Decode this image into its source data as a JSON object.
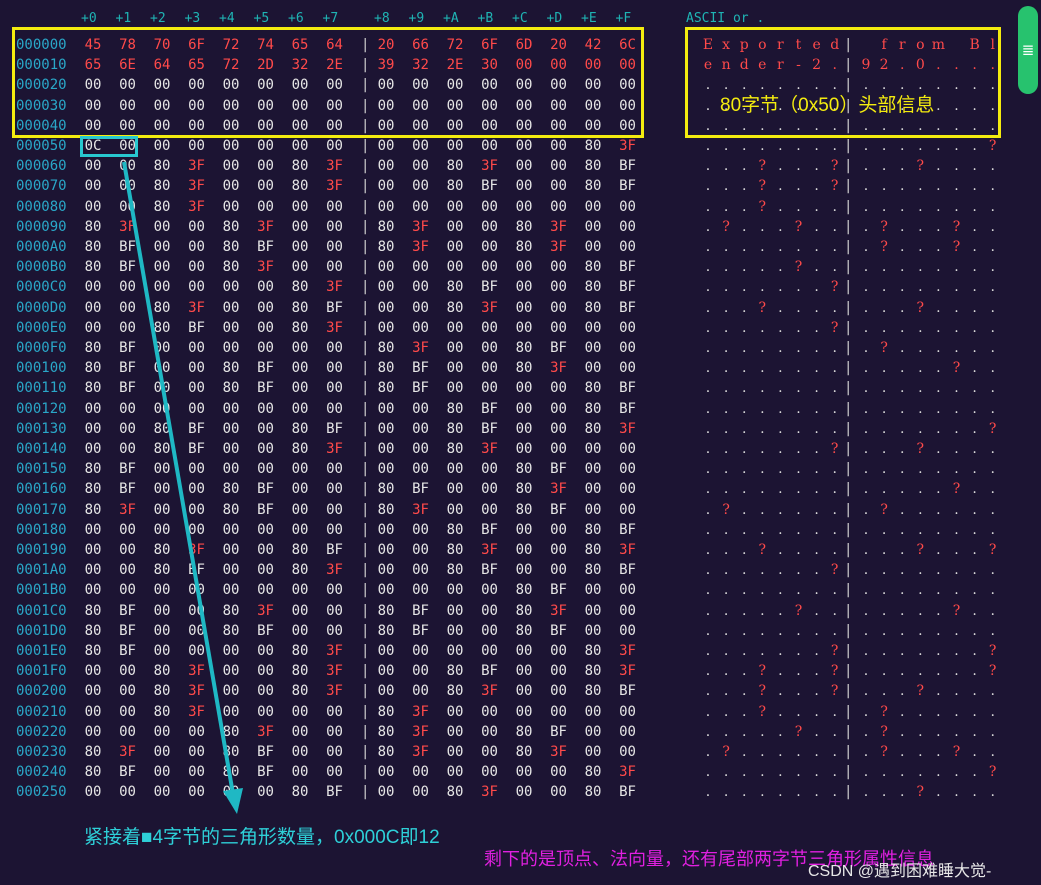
{
  "columns": [
    "+0",
    "+1",
    "+2",
    "+3",
    "+4",
    "+5",
    "+6",
    "+7",
    "+8",
    "+9",
    "+A",
    "+B",
    "+C",
    "+D",
    "+E",
    "+F"
  ],
  "ascii_header": "ASCII or .",
  "separator": "|",
  "rows": [
    {
      "addr": "000000",
      "bytes": [
        "45",
        "78",
        "70",
        "6F",
        "72",
        "74",
        "65",
        "64",
        "20",
        "66",
        "72",
        "6F",
        "6D",
        "20",
        "42",
        "6C"
      ],
      "ascii": "Exported from Bl"
    },
    {
      "addr": "000010",
      "bytes": [
        "65",
        "6E",
        "64",
        "65",
        "72",
        "2D",
        "32",
        "2E",
        "39",
        "32",
        "2E",
        "30",
        "00",
        "00",
        "00",
        "00"
      ],
      "ascii": "ender-2.92.0...."
    },
    {
      "addr": "000020",
      "bytes": [
        "00",
        "00",
        "00",
        "00",
        "00",
        "00",
        "00",
        "00",
        "00",
        "00",
        "00",
        "00",
        "00",
        "00",
        "00",
        "00"
      ],
      "ascii": "................"
    },
    {
      "addr": "000030",
      "bytes": [
        "00",
        "00",
        "00",
        "00",
        "00",
        "00",
        "00",
        "00",
        "00",
        "00",
        "00",
        "00",
        "00",
        "00",
        "00",
        "00"
      ],
      "ascii": "................"
    },
    {
      "addr": "000040",
      "bytes": [
        "00",
        "00",
        "00",
        "00",
        "00",
        "00",
        "00",
        "00",
        "00",
        "00",
        "00",
        "00",
        "00",
        "00",
        "00",
        "00"
      ],
      "ascii": "................"
    },
    {
      "addr": "000050",
      "bytes": [
        "0C",
        "00",
        "00",
        "00",
        "00",
        "00",
        "00",
        "00",
        "00",
        "00",
        "00",
        "00",
        "00",
        "00",
        "80",
        "3F"
      ],
      "ascii": "...............?"
    },
    {
      "addr": "000060",
      "bytes": [
        "00",
        "00",
        "80",
        "3F",
        "00",
        "00",
        "80",
        "3F",
        "00",
        "00",
        "80",
        "3F",
        "00",
        "00",
        "80",
        "BF"
      ],
      "ascii": "...?...?...?...."
    },
    {
      "addr": "000070",
      "bytes": [
        "00",
        "00",
        "80",
        "3F",
        "00",
        "00",
        "80",
        "3F",
        "00",
        "00",
        "80",
        "BF",
        "00",
        "00",
        "80",
        "BF"
      ],
      "ascii": "...?...?........"
    },
    {
      "addr": "000080",
      "bytes": [
        "00",
        "00",
        "80",
        "3F",
        "00",
        "00",
        "00",
        "00",
        "00",
        "00",
        "00",
        "00",
        "00",
        "00",
        "00",
        "00"
      ],
      "ascii": "...?............"
    },
    {
      "addr": "000090",
      "bytes": [
        "80",
        "3F",
        "00",
        "00",
        "80",
        "3F",
        "00",
        "00",
        "80",
        "3F",
        "00",
        "00",
        "80",
        "3F",
        "00",
        "00"
      ],
      "ascii": ".?...?...?...?.."
    },
    {
      "addr": "0000A0",
      "bytes": [
        "80",
        "BF",
        "00",
        "00",
        "80",
        "BF",
        "00",
        "00",
        "80",
        "3F",
        "00",
        "00",
        "80",
        "3F",
        "00",
        "00"
      ],
      "ascii": ".........?...?.."
    },
    {
      "addr": "0000B0",
      "bytes": [
        "80",
        "BF",
        "00",
        "00",
        "80",
        "3F",
        "00",
        "00",
        "00",
        "00",
        "00",
        "00",
        "00",
        "00",
        "80",
        "BF"
      ],
      "ascii": ".....?.........."
    },
    {
      "addr": "0000C0",
      "bytes": [
        "00",
        "00",
        "00",
        "00",
        "00",
        "00",
        "80",
        "3F",
        "00",
        "00",
        "80",
        "BF",
        "00",
        "00",
        "80",
        "BF"
      ],
      "ascii": ".......?........"
    },
    {
      "addr": "0000D0",
      "bytes": [
        "00",
        "00",
        "80",
        "3F",
        "00",
        "00",
        "80",
        "BF",
        "00",
        "00",
        "80",
        "3F",
        "00",
        "00",
        "80",
        "BF"
      ],
      "ascii": "...?.......?...."
    },
    {
      "addr": "0000E0",
      "bytes": [
        "00",
        "00",
        "80",
        "BF",
        "00",
        "00",
        "80",
        "3F",
        "00",
        "00",
        "00",
        "00",
        "00",
        "00",
        "00",
        "00"
      ],
      "ascii": ".......?........"
    },
    {
      "addr": "0000F0",
      "bytes": [
        "80",
        "BF",
        "00",
        "00",
        "00",
        "00",
        "00",
        "00",
        "80",
        "3F",
        "00",
        "00",
        "80",
        "BF",
        "00",
        "00"
      ],
      "ascii": ".........?......"
    },
    {
      "addr": "000100",
      "bytes": [
        "80",
        "BF",
        "00",
        "00",
        "80",
        "BF",
        "00",
        "00",
        "80",
        "BF",
        "00",
        "00",
        "80",
        "3F",
        "00",
        "00"
      ],
      "ascii": ".............?.."
    },
    {
      "addr": "000110",
      "bytes": [
        "80",
        "BF",
        "00",
        "00",
        "80",
        "BF",
        "00",
        "00",
        "80",
        "BF",
        "00",
        "00",
        "00",
        "00",
        "80",
        "BF"
      ],
      "ascii": "................"
    },
    {
      "addr": "000120",
      "bytes": [
        "00",
        "00",
        "00",
        "00",
        "00",
        "00",
        "00",
        "00",
        "00",
        "00",
        "80",
        "BF",
        "00",
        "00",
        "80",
        "BF"
      ],
      "ascii": "................"
    },
    {
      "addr": "000130",
      "bytes": [
        "00",
        "00",
        "80",
        "BF",
        "00",
        "00",
        "80",
        "BF",
        "00",
        "00",
        "80",
        "BF",
        "00",
        "00",
        "80",
        "3F"
      ],
      "ascii": "...............?"
    },
    {
      "addr": "000140",
      "bytes": [
        "00",
        "00",
        "80",
        "BF",
        "00",
        "00",
        "80",
        "3F",
        "00",
        "00",
        "80",
        "3F",
        "00",
        "00",
        "00",
        "00"
      ],
      "ascii": ".......?...?...."
    },
    {
      "addr": "000150",
      "bytes": [
        "80",
        "BF",
        "00",
        "00",
        "00",
        "00",
        "00",
        "00",
        "00",
        "00",
        "00",
        "00",
        "80",
        "BF",
        "00",
        "00"
      ],
      "ascii": "................"
    },
    {
      "addr": "000160",
      "bytes": [
        "80",
        "BF",
        "00",
        "00",
        "80",
        "BF",
        "00",
        "00",
        "80",
        "BF",
        "00",
        "00",
        "80",
        "3F",
        "00",
        "00"
      ],
      "ascii": ".............?.."
    },
    {
      "addr": "000170",
      "bytes": [
        "80",
        "3F",
        "00",
        "00",
        "80",
        "BF",
        "00",
        "00",
        "80",
        "3F",
        "00",
        "00",
        "80",
        "BF",
        "00",
        "00"
      ],
      "ascii": ".?.......?......"
    },
    {
      "addr": "000180",
      "bytes": [
        "00",
        "00",
        "00",
        "00",
        "00",
        "00",
        "00",
        "00",
        "00",
        "00",
        "80",
        "BF",
        "00",
        "00",
        "80",
        "BF"
      ],
      "ascii": "................"
    },
    {
      "addr": "000190",
      "bytes": [
        "00",
        "00",
        "80",
        "3F",
        "00",
        "00",
        "80",
        "BF",
        "00",
        "00",
        "80",
        "3F",
        "00",
        "00",
        "80",
        "3F"
      ],
      "ascii": "...?.......?...?"
    },
    {
      "addr": "0001A0",
      "bytes": [
        "00",
        "00",
        "80",
        "BF",
        "00",
        "00",
        "80",
        "3F",
        "00",
        "00",
        "80",
        "BF",
        "00",
        "00",
        "80",
        "BF"
      ],
      "ascii": ".......?........"
    },
    {
      "addr": "0001B0",
      "bytes": [
        "00",
        "00",
        "00",
        "00",
        "00",
        "00",
        "00",
        "00",
        "00",
        "00",
        "00",
        "00",
        "80",
        "BF",
        "00",
        "00"
      ],
      "ascii": "................"
    },
    {
      "addr": "0001C0",
      "bytes": [
        "80",
        "BF",
        "00",
        "00",
        "80",
        "3F",
        "00",
        "00",
        "80",
        "BF",
        "00",
        "00",
        "80",
        "3F",
        "00",
        "00"
      ],
      "ascii": ".....?.......?.."
    },
    {
      "addr": "0001D0",
      "bytes": [
        "80",
        "BF",
        "00",
        "00",
        "80",
        "BF",
        "00",
        "00",
        "80",
        "BF",
        "00",
        "00",
        "80",
        "BF",
        "00",
        "00"
      ],
      "ascii": "................"
    },
    {
      "addr": "0001E0",
      "bytes": [
        "80",
        "BF",
        "00",
        "00",
        "00",
        "00",
        "80",
        "3F",
        "00",
        "00",
        "00",
        "00",
        "00",
        "00",
        "80",
        "3F"
      ],
      "ascii": ".......?.......?"
    },
    {
      "addr": "0001F0",
      "bytes": [
        "00",
        "00",
        "80",
        "3F",
        "00",
        "00",
        "80",
        "3F",
        "00",
        "00",
        "80",
        "BF",
        "00",
        "00",
        "80",
        "3F"
      ],
      "ascii": "...?...?.......?"
    },
    {
      "addr": "000200",
      "bytes": [
        "00",
        "00",
        "80",
        "3F",
        "00",
        "00",
        "80",
        "3F",
        "00",
        "00",
        "80",
        "3F",
        "00",
        "00",
        "80",
        "BF"
      ],
      "ascii": "...?...?...?...."
    },
    {
      "addr": "000210",
      "bytes": [
        "00",
        "00",
        "80",
        "3F",
        "00",
        "00",
        "00",
        "00",
        "80",
        "3F",
        "00",
        "00",
        "00",
        "00",
        "00",
        "00"
      ],
      "ascii": "...?.....?......"
    },
    {
      "addr": "000220",
      "bytes": [
        "00",
        "00",
        "00",
        "00",
        "80",
        "3F",
        "00",
        "00",
        "80",
        "3F",
        "00",
        "00",
        "80",
        "BF",
        "00",
        "00"
      ],
      "ascii": ".....?...?......"
    },
    {
      "addr": "000230",
      "bytes": [
        "80",
        "3F",
        "00",
        "00",
        "80",
        "BF",
        "00",
        "00",
        "80",
        "3F",
        "00",
        "00",
        "80",
        "3F",
        "00",
        "00"
      ],
      "ascii": ".?.......?...?.."
    },
    {
      "addr": "000240",
      "bytes": [
        "80",
        "BF",
        "00",
        "00",
        "80",
        "BF",
        "00",
        "00",
        "00",
        "00",
        "00",
        "00",
        "00",
        "00",
        "80",
        "3F"
      ],
      "ascii": "...............?"
    },
    {
      "addr": "000250",
      "bytes": [
        "00",
        "00",
        "00",
        "00",
        "00",
        "00",
        "80",
        "BF",
        "00",
        "00",
        "80",
        "3F",
        "00",
        "00",
        "80",
        "BF"
      ],
      "ascii": "...........?...."
    }
  ],
  "annotations": {
    "header_label": "80字节（0x50）头部信息",
    "count_label": "紧接着■4字节的三角形数量，0x000C即12",
    "rest_label": "剩下的是顶点、法向量，还有尾部两字节三角形属性信息",
    "watermark": "CSDN @遇到困难睡大觉-"
  },
  "scrollbar": {
    "grip_icon": "≣"
  },
  "colors": {
    "background": "#1c1433",
    "address": "#2aa7c8",
    "byte_normal": "#e6e6e6",
    "byte_highlight": "#ff4a4a",
    "header_box": "#f4ec0f",
    "count_box": "#28c8d0",
    "arrow": "#1fb8c4",
    "count_text": "#2ed0d8",
    "rest_text": "#e020e0",
    "scrollbar": "#27c26e"
  }
}
